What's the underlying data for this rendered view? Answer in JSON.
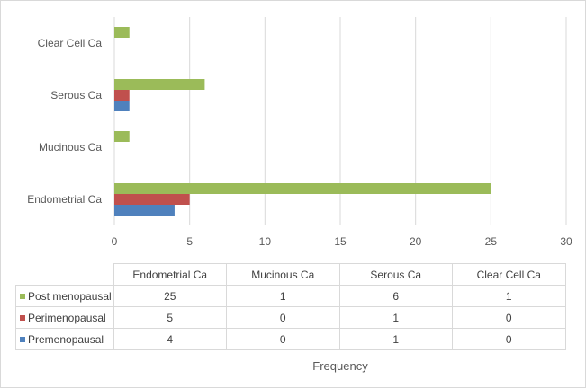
{
  "chart_data": {
    "type": "bar",
    "orientation": "horizontal",
    "categories": [
      "Endometrial Ca",
      "Mucinous Ca",
      "Serous Ca",
      "Clear Cell Ca"
    ],
    "series": [
      {
        "name": "Post menopausal",
        "values": [
          25,
          1,
          6,
          1
        ],
        "color": "#9bbb59"
      },
      {
        "name": "Perimenopausal",
        "values": [
          5,
          0,
          1,
          0
        ],
        "color": "#c0504d"
      },
      {
        "name": "Premenopausal",
        "values": [
          4,
          0,
          1,
          0
        ],
        "color": "#4f81bd"
      }
    ],
    "xlabel": "Frequency",
    "ylabel": "",
    "xlim": [
      0,
      30
    ],
    "xticks": [
      0,
      5,
      10,
      15,
      20,
      25,
      30
    ],
    "grid": true,
    "legend": "data-table-below"
  }
}
